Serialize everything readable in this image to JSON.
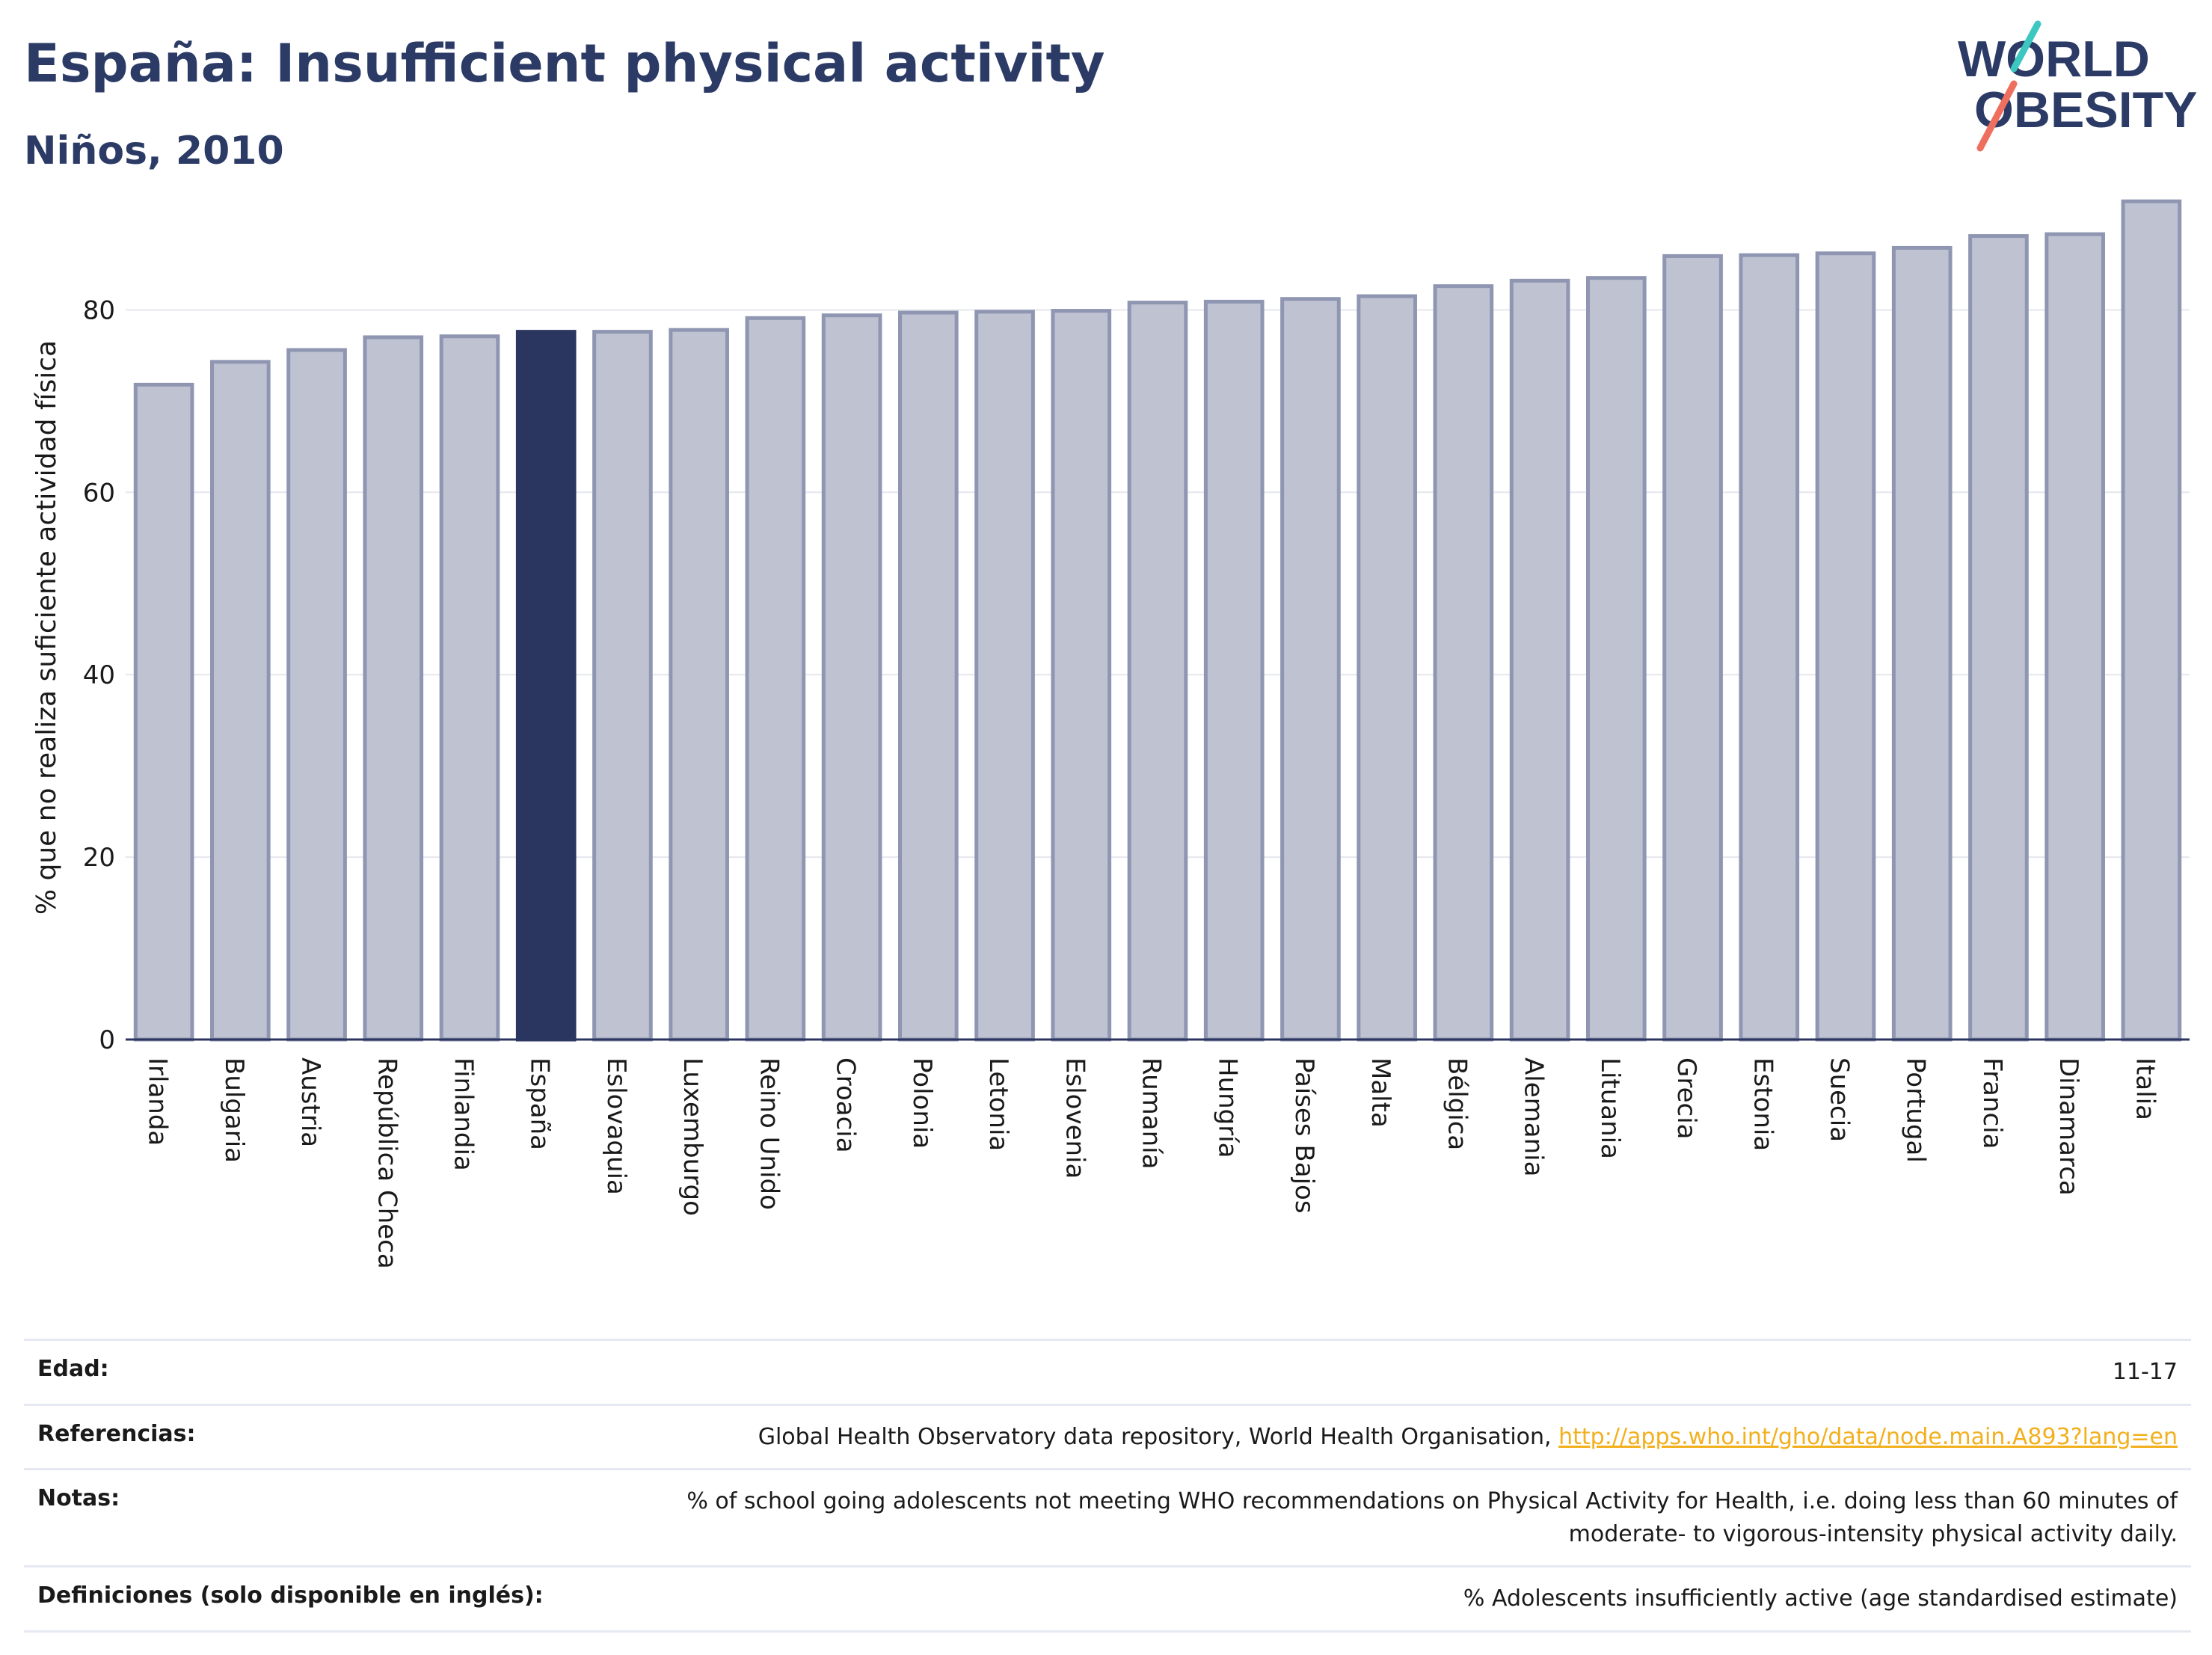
{
  "header": {
    "title": "España: Insufficient physical activity",
    "subtitle": "Niños, 2010"
  },
  "logo": {
    "line1": "WORLD",
    "line2": "OBESITY"
  },
  "colors": {
    "bar": "#bfc2d1",
    "bar_stroke": "#8f96b2",
    "highlight": "#2b3660",
    "title": "#2b3b66"
  },
  "chart_data": {
    "type": "bar",
    "ylabel": "% que no realiza suficiente actividad física",
    "ylim": [
      0,
      92
    ],
    "yticks": [
      0,
      20,
      40,
      60,
      80
    ],
    "grid": true,
    "highlight": "España",
    "categories": [
      "Irlanda",
      "Bulgaria",
      "Austria",
      "República Checa",
      "Finlandia",
      "España",
      "Eslovaquia",
      "Luxemburgo",
      "Reino Unido",
      "Croacia",
      "Polonia",
      "Letonia",
      "Eslovenia",
      "Rumanía",
      "Hungría",
      "Países Bajos",
      "Malta",
      "Bélgica",
      "Alemania",
      "Lituania",
      "Grecia",
      "Estonia",
      "Suecia",
      "Portugal",
      "Francia",
      "Dinamarca",
      "Italia"
    ],
    "values": [
      71.8,
      74.3,
      75.6,
      77.0,
      77.1,
      77.6,
      77.6,
      77.8,
      79.1,
      79.4,
      79.7,
      79.8,
      79.9,
      80.8,
      80.9,
      81.2,
      81.5,
      82.6,
      83.2,
      83.5,
      85.9,
      86.0,
      86.2,
      86.8,
      88.1,
      88.3,
      91.9
    ]
  },
  "info": [
    {
      "label": "Edad:",
      "value": "11-17"
    },
    {
      "label": "Referencias:",
      "value": "Global Health Observatory data repository, World Health Organisation,",
      "link": "http://apps.who.int/gho/data/node.main.A893?lang=en"
    },
    {
      "label": "Notas:",
      "value": "% of school going adolescents not meeting WHO recommendations on Physical Activity for Health, i.e. doing less than 60 minutes of moderate- to vigorous-intensity physical activity daily."
    },
    {
      "label": "Definiciones (solo disponible en inglés):",
      "value": "% Adolescents insufficiently active (age standardised estimate)"
    }
  ]
}
